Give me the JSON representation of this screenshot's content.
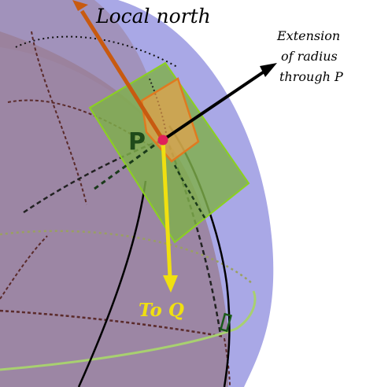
{
  "labels": {
    "local_north": "Local north",
    "extension_line1": "Extension",
    "extension_line2": "of radius",
    "extension_line3": "through P",
    "point_p": "P",
    "to_q": "To Q"
  },
  "colors": {
    "sphere_fill": "#a9a8e6",
    "sphere_shadow": "#9a8098",
    "tangent_plane": "#7fb04a",
    "tangent_plane_edge": "#8bd11f",
    "pentagon": "#f0a048",
    "north_arrow": "#c85a10",
    "radius_arrow": "#000000",
    "q_arrow": "#f0e010",
    "point_p": "#e0205a",
    "equator": "#a8d070"
  }
}
